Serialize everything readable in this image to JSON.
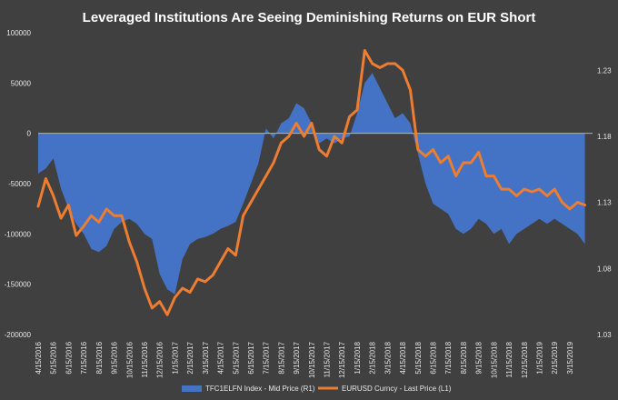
{
  "chart_data": {
    "type": "area+line",
    "title": "Leveraged Institutions Are Seeing Deminishing Returns on EUR Short",
    "colors": {
      "background": "#404040",
      "area": "#4472c4",
      "line": "#ed7d31",
      "zero_line": "#bfbfbf"
    },
    "left_axis": {
      "ticks": [
        "100000",
        "50000",
        "0",
        "-50000",
        "-100000",
        "-150000",
        "-200000"
      ],
      "tick_values": [
        100000,
        50000,
        0,
        -50000,
        -100000,
        -150000,
        -200000
      ],
      "ylim": [
        -200000,
        100000
      ]
    },
    "right_axis": {
      "ticks": [
        "1.23",
        "1.18",
        "1.13",
        "1.08",
        "1.03"
      ],
      "tick_values": [
        1.23,
        1.18,
        1.13,
        1.08,
        1.03
      ],
      "ylim": [
        1.03,
        1.2584
      ]
    },
    "x_axis": {
      "tick_labels": [
        "4/15/2016",
        "5/15/2016",
        "6/15/2016",
        "7/15/2016",
        "8/15/2016",
        "9/15/2016",
        "10/15/2016",
        "11/15/2016",
        "12/15/2016",
        "1/15/2017",
        "2/15/2017",
        "3/15/2017",
        "4/15/2017",
        "5/15/2017",
        "6/15/2017",
        "7/15/2017",
        "8/15/2017",
        "9/15/2017",
        "10/15/2017",
        "11/15/2017",
        "12/15/2017",
        "1/15/2018",
        "2/15/2018",
        "3/15/2018",
        "4/15/2018",
        "5/15/2018",
        "6/15/2018",
        "7/15/2018",
        "8/15/2018",
        "9/15/2018",
        "10/15/2018",
        "11/15/2018",
        "12/15/2018",
        "1/15/2019",
        "2/15/2019",
        "3/15/2019"
      ],
      "xlim": [
        0,
        36.5
      ]
    },
    "series": [
      {
        "name": "TFC1ELFN Index - Mid Price (R1)",
        "type": "area",
        "axis": "left",
        "x": [
          0,
          0.5,
          1,
          1.5,
          2,
          2.5,
          3,
          3.5,
          4,
          4.5,
          5,
          5.5,
          6,
          6.5,
          7,
          7.5,
          8,
          8.5,
          9,
          9.5,
          10,
          10.5,
          11,
          11.5,
          12,
          12.5,
          13,
          13.5,
          14,
          14.5,
          15,
          15.5,
          16,
          16.5,
          17,
          17.5,
          18,
          18.5,
          19,
          19.5,
          20,
          20.5,
          21,
          21.5,
          22,
          22.5,
          23,
          23.5,
          24,
          24.5,
          25,
          25.5,
          26,
          26.5,
          27,
          27.5,
          28,
          28.5,
          29,
          29.5,
          30,
          30.5,
          31,
          31.5,
          32,
          32.5,
          33,
          33.5,
          34,
          34.5,
          35,
          35.5,
          36
        ],
        "values": [
          -40000,
          -35000,
          -25000,
          -55000,
          -75000,
          -90000,
          -100000,
          -115000,
          -118000,
          -112000,
          -95000,
          -88000,
          -85000,
          -90000,
          -100000,
          -105000,
          -140000,
          -155000,
          -160000,
          -125000,
          -110000,
          -105000,
          -103000,
          -100000,
          -95000,
          -92000,
          -88000,
          -70000,
          -50000,
          -30000,
          5000,
          -5000,
          10000,
          15000,
          30000,
          25000,
          10000,
          -10000,
          -5000,
          -10000,
          -5000,
          -3000,
          20000,
          50000,
          60000,
          45000,
          30000,
          15000,
          20000,
          10000,
          -20000,
          -50000,
          -70000,
          -75000,
          -80000,
          -95000,
          -100000,
          -95000,
          -85000,
          -90000,
          -100000,
          -95000,
          -110000,
          -100000,
          -95000,
          -90000,
          -85000,
          -90000,
          -85000,
          -90000,
          -95000,
          -100000,
          -110000
        ]
      },
      {
        "name": "EURUSD Curncy - Last Price (L1)",
        "type": "line",
        "axis": "right",
        "x": [
          0,
          0.5,
          1,
          1.5,
          2,
          2.5,
          3,
          3.5,
          4,
          4.5,
          5,
          5.5,
          6,
          6.5,
          7,
          7.5,
          8,
          8.5,
          9,
          9.5,
          10,
          10.5,
          11,
          11.5,
          12,
          12.5,
          13,
          13.5,
          14,
          14.5,
          15,
          15.5,
          16,
          16.5,
          17,
          17.5,
          18,
          18.5,
          19,
          19.5,
          20,
          20.5,
          21,
          21.5,
          22,
          22.5,
          23,
          23.5,
          24,
          24.5,
          25,
          25.5,
          26,
          26.5,
          27,
          27.5,
          28,
          28.5,
          29,
          29.5,
          30,
          30.5,
          31,
          31.5,
          32,
          32.5,
          33,
          33.5,
          34,
          34.5,
          35,
          35.5,
          36
        ],
        "values": [
          1.127,
          1.148,
          1.135,
          1.118,
          1.128,
          1.105,
          1.112,
          1.12,
          1.115,
          1.125,
          1.12,
          1.12,
          1.1,
          1.085,
          1.065,
          1.05,
          1.055,
          1.045,
          1.058,
          1.065,
          1.062,
          1.072,
          1.07,
          1.075,
          1.085,
          1.095,
          1.09,
          1.12,
          1.13,
          1.14,
          1.15,
          1.16,
          1.175,
          1.18,
          1.19,
          1.18,
          1.19,
          1.17,
          1.165,
          1.18,
          1.175,
          1.195,
          1.2,
          1.245,
          1.235,
          1.232,
          1.235,
          1.235,
          1.23,
          1.215,
          1.17,
          1.165,
          1.17,
          1.16,
          1.165,
          1.15,
          1.16,
          1.16,
          1.168,
          1.15,
          1.15,
          1.14,
          1.14,
          1.135,
          1.14,
          1.138,
          1.14,
          1.135,
          1.14,
          1.13,
          1.125,
          1.13,
          1.128
        ]
      }
    ],
    "legend": {
      "placement": "bottom",
      "entries": [
        "TFC1ELFN Index - Mid Price (R1)",
        "EURUSD Curncy - Last Price (L1)"
      ]
    }
  }
}
